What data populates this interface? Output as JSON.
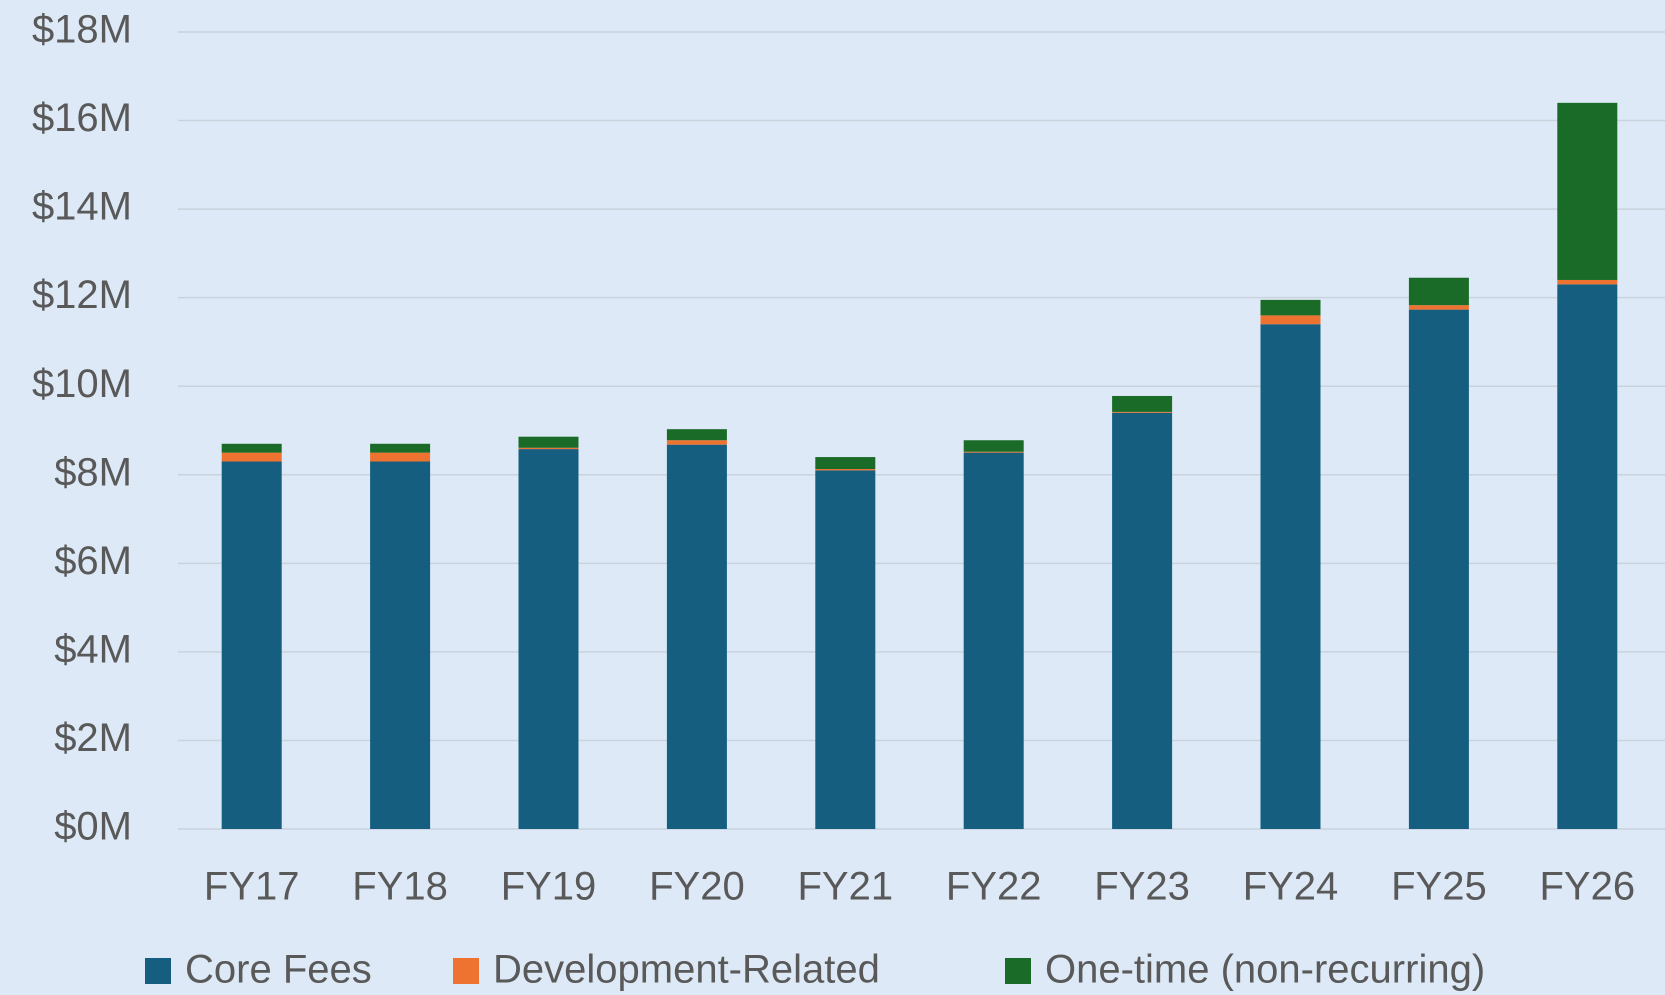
{
  "chart_data": {
    "type": "stacked-bar",
    "categories": [
      "FY17",
      "FY18",
      "FY19",
      "FY20",
      "FY21",
      "FY22",
      "FY23",
      "FY24",
      "FY25",
      "FY26"
    ],
    "series": [
      {
        "name": "Core Fees",
        "color": "#155e80",
        "values": [
          8.3,
          8.3,
          8.58,
          8.68,
          8.1,
          8.5,
          9.4,
          11.4,
          11.73,
          12.3
        ]
      },
      {
        "name": "Development-Related",
        "color": "#ee7330",
        "values": [
          0.2,
          0.2,
          0.03,
          0.1,
          0.03,
          0.02,
          0.02,
          0.2,
          0.1,
          0.1
        ]
      },
      {
        "name": "One-time (non-recurring)",
        "color": "#1a6b27",
        "values": [
          0.2,
          0.2,
          0.25,
          0.25,
          0.27,
          0.26,
          0.36,
          0.35,
          0.62,
          4.0
        ]
      }
    ],
    "ylim": [
      0,
      18
    ],
    "yticks": [
      {
        "value": 0,
        "label": "$0M"
      },
      {
        "value": 2,
        "label": "$2M"
      },
      {
        "value": 4,
        "label": "$4M"
      },
      {
        "value": 6,
        "label": "$6M"
      },
      {
        "value": 8,
        "label": "$8M"
      },
      {
        "value": 10,
        "label": "$10M"
      },
      {
        "value": 12,
        "label": "$12M"
      },
      {
        "value": 14,
        "label": "$14M"
      },
      {
        "value": 16,
        "label": "$16M"
      },
      {
        "value": 18,
        "label": "$18M"
      }
    ],
    "grid": true,
    "legend": "bottom"
  }
}
